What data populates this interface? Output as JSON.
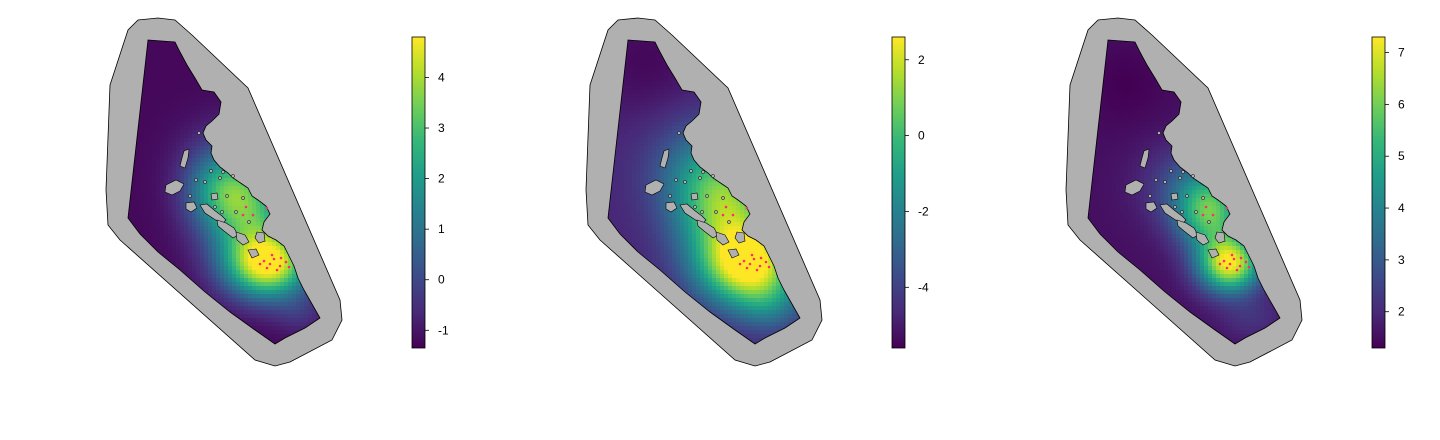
{
  "chart_data": [
    {
      "type": "heatmap",
      "title": "",
      "colormap": "viridis",
      "colorbar": {
        "min": -1.35,
        "max": 4.8,
        "ticks": [
          -1,
          0,
          1,
          2,
          3,
          4
        ],
        "tick_labels": [
          "-1",
          "0",
          "1",
          "2",
          "3",
          "4"
        ]
      },
      "mask_color": "#b0b0b0",
      "outline_color": "#000000",
      "point_color": "#ff2d6f"
    },
    {
      "type": "heatmap",
      "title": "",
      "colormap": "viridis",
      "colorbar": {
        "min": -5.6,
        "max": 2.6,
        "ticks": [
          -4,
          -2,
          0,
          2
        ],
        "tick_labels": [
          "-4",
          "-2",
          "0",
          "2"
        ]
      },
      "mask_color": "#b0b0b0",
      "outline_color": "#000000",
      "point_color": "#ff2d6f"
    },
    {
      "type": "heatmap",
      "title": "",
      "colormap": "viridis",
      "colorbar": {
        "min": 1.3,
        "max": 7.3,
        "ticks": [
          2,
          3,
          4,
          5,
          6,
          7
        ],
        "tick_labels": [
          "2",
          "3",
          "4",
          "5",
          "6",
          "7"
        ]
      },
      "mask_color": "#b0b0b0",
      "outline_color": "#000000",
      "point_color": "#ff2d6f"
    }
  ]
}
